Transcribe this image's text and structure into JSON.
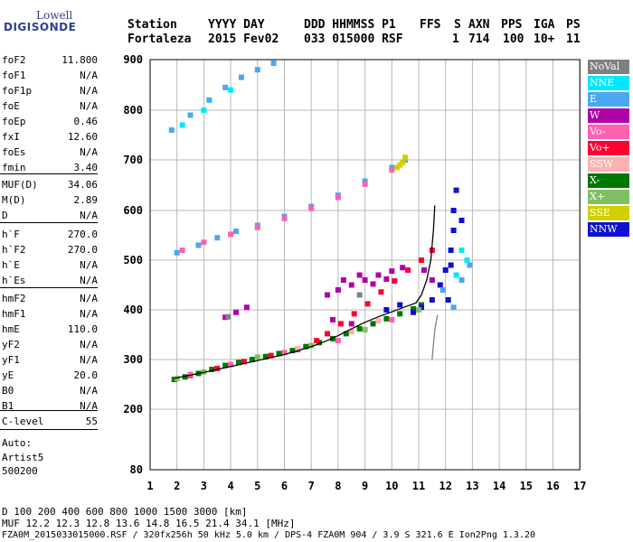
{
  "logo": {
    "line1": "Lowell",
    "line2": "DIGISONDE"
  },
  "header": {
    "labels": [
      "Station",
      "YYYY DAY",
      "DDD HHMMSS P1",
      "FFS",
      "S",
      "AXN",
      "PPS",
      "IGA",
      "PS"
    ],
    "values": [
      "Fortaleza",
      "2015 Fev02",
      "033 015000 RSF",
      "1",
      "714",
      "100",
      "10+",
      "11"
    ]
  },
  "params_group1": [
    {
      "name": "foF2",
      "value": "11.800"
    },
    {
      "name": "foF1",
      "value": "N/A"
    },
    {
      "name": "foF1p",
      "value": "N/A"
    },
    {
      "name": "foE",
      "value": "N/A"
    },
    {
      "name": "foEp",
      "value": "0.46"
    },
    {
      "name": "fxI",
      "value": "12.60"
    },
    {
      "name": "foEs",
      "value": "N/A"
    },
    {
      "name": "fmin",
      "value": "3.40"
    }
  ],
  "params_group2": [
    {
      "name": "MUF(D)",
      "value": "34.06"
    },
    {
      "name": "M(D)",
      "value": "2.89"
    },
    {
      "name": "D",
      "value": "N/A"
    }
  ],
  "params_group3": [
    {
      "name": "h`F",
      "value": "270.0"
    },
    {
      "name": "h`F2",
      "value": "270.0"
    },
    {
      "name": "h`E",
      "value": "N/A"
    },
    {
      "name": "h`Es",
      "value": "N/A"
    }
  ],
  "params_group4": [
    {
      "name": "hmF2",
      "value": "N/A"
    },
    {
      "name": "hmF1",
      "value": "N/A"
    },
    {
      "name": "hmE",
      "value": "110.0"
    },
    {
      "name": "yF2",
      "value": "N/A"
    },
    {
      "name": "yF1",
      "value": "N/A"
    },
    {
      "name": "yE",
      "value": "20.0"
    },
    {
      "name": "B0",
      "value": "N/A"
    },
    {
      "name": "B1",
      "value": "N/A"
    }
  ],
  "params_group5": [
    {
      "name": "C-level",
      "value": "55"
    }
  ],
  "auto": {
    "label": "Auto:",
    "name": "Artist5",
    "code": "500200"
  },
  "legend": [
    {
      "label": "NoVal",
      "color": "#808080"
    },
    {
      "label": "NNE",
      "color": "#00e8ff"
    },
    {
      "label": "E",
      "color": "#4aa8f0"
    },
    {
      "label": "W",
      "color": "#b000a8"
    },
    {
      "label": "Vo-",
      "color": "#ff60b0"
    },
    {
      "label": "Vo+",
      "color": "#ff0030"
    },
    {
      "label": "SSW",
      "color": "#ffb0b0"
    },
    {
      "label": "X-",
      "color": "#007800"
    },
    {
      "label": "X+",
      "color": "#80c060"
    },
    {
      "label": "SSE",
      "color": "#d0d000"
    },
    {
      "label": "NNW",
      "color": "#1010d0"
    }
  ],
  "footer": {
    "line1": "D     100  200  400  600  800 1000 1500 3000 [km]",
    "line2": "MUF  12.2 12.3 12.8 13.6 14.8 16.5 21.4 34.1 [MHz]",
    "line3": "FZA0M_2015033015000.RSF / 320fx256h 50 kHz 5.0 km / DPS-4 FZA0M 904 / 3.9 S 321.6 E   Ion2Png 1.3.20"
  },
  "chart_data": {
    "type": "scatter",
    "title": "",
    "xlabel": "",
    "ylabel": "",
    "xlim": [
      1,
      17
    ],
    "ylim": [
      80,
      900
    ],
    "xticks": [
      "1",
      "2",
      "3",
      "4",
      "5",
      "6",
      "7",
      "8",
      "9",
      "10",
      "11",
      "12",
      "13",
      "14",
      "15",
      "16",
      "17"
    ],
    "yticks": [
      "80",
      "200",
      "300",
      "400",
      "500",
      "600",
      "700",
      "800",
      "900"
    ],
    "grid": true,
    "series": [
      {
        "name": "X-",
        "color": "#007800",
        "points": [
          [
            1.9,
            260
          ],
          [
            2.3,
            265
          ],
          [
            2.8,
            272
          ],
          [
            3.3,
            280
          ],
          [
            3.8,
            288
          ],
          [
            4.3,
            294
          ],
          [
            4.8,
            300
          ],
          [
            5.3,
            306
          ],
          [
            5.8,
            312
          ],
          [
            6.3,
            318
          ],
          [
            6.8,
            326
          ],
          [
            7.3,
            334
          ],
          [
            7.8,
            342
          ],
          [
            8.3,
            352
          ],
          [
            8.8,
            362
          ],
          [
            9.3,
            372
          ],
          [
            9.8,
            382
          ],
          [
            10.3,
            392
          ],
          [
            10.8,
            402
          ],
          [
            11.1,
            410
          ]
        ]
      },
      {
        "name": "Vo+",
        "color": "#ff0030",
        "points": [
          [
            2.5,
            268
          ],
          [
            3.5,
            282
          ],
          [
            4.5,
            296
          ],
          [
            5.5,
            308
          ],
          [
            6.5,
            320
          ],
          [
            7.2,
            338
          ],
          [
            7.6,
            352
          ],
          [
            8.1,
            372
          ],
          [
            8.6,
            392
          ],
          [
            9.1,
            412
          ],
          [
            9.6,
            436
          ],
          [
            10.1,
            458
          ],
          [
            10.6,
            480
          ],
          [
            11.1,
            500
          ],
          [
            11.5,
            520
          ]
        ]
      },
      {
        "name": "W",
        "color": "#b000a8",
        "points": [
          [
            7.6,
            430
          ],
          [
            8.0,
            440
          ],
          [
            8.5,
            450
          ],
          [
            9.0,
            460
          ],
          [
            9.5,
            470
          ],
          [
            10.0,
            478
          ],
          [
            10.4,
            485
          ],
          [
            8.2,
            460
          ],
          [
            8.8,
            470
          ],
          [
            9.3,
            452
          ],
          [
            9.8,
            462
          ],
          [
            7.8,
            380
          ],
          [
            8.5,
            372
          ],
          [
            4.2,
            395
          ],
          [
            4.6,
            405
          ],
          [
            3.8,
            385
          ],
          [
            11.2,
            480
          ],
          [
            11.5,
            460
          ]
        ]
      },
      {
        "name": "NNW",
        "color": "#1010d0",
        "points": [
          [
            10.8,
            395
          ],
          [
            11.1,
            405
          ],
          [
            11.5,
            420
          ],
          [
            11.8,
            450
          ],
          [
            12.0,
            480
          ],
          [
            12.2,
            520
          ],
          [
            12.3,
            560
          ],
          [
            12.3,
            600
          ],
          [
            12.4,
            640
          ],
          [
            12.1,
            420
          ],
          [
            12.6,
            580
          ],
          [
            12.2,
            490
          ],
          [
            9.8,
            400
          ],
          [
            10.3,
            410
          ]
        ]
      },
      {
        "name": "E",
        "color": "#4aa8f0",
        "points": [
          [
            1.8,
            760
          ],
          [
            2.5,
            790
          ],
          [
            3.2,
            820
          ],
          [
            3.8,
            845
          ],
          [
            4.4,
            865
          ],
          [
            5.0,
            880
          ],
          [
            5.6,
            893
          ],
          [
            2.0,
            515
          ],
          [
            2.8,
            530
          ],
          [
            3.5,
            545
          ],
          [
            4.2,
            558
          ],
          [
            5.0,
            570
          ],
          [
            6.0,
            588
          ],
          [
            7.0,
            608
          ],
          [
            8.0,
            630
          ],
          [
            9.0,
            658
          ],
          [
            10.0,
            685
          ],
          [
            10.5,
            700
          ],
          [
            12.6,
            460
          ],
          [
            12.9,
            490
          ],
          [
            11.9,
            440
          ],
          [
            12.3,
            405
          ]
        ]
      },
      {
        "name": "Vo-",
        "color": "#ff60b0",
        "points": [
          [
            2.2,
            520
          ],
          [
            3.0,
            536
          ],
          [
            4.0,
            552
          ],
          [
            5.0,
            566
          ],
          [
            6.0,
            584
          ],
          [
            7.0,
            604
          ],
          [
            8.0,
            626
          ],
          [
            9.0,
            652
          ],
          [
            10.0,
            680
          ],
          [
            2.5,
            270
          ],
          [
            4.0,
            290
          ],
          [
            6.0,
            314
          ],
          [
            8.0,
            338
          ],
          [
            10.0,
            380
          ]
        ]
      },
      {
        "name": "NNE",
        "color": "#00e8ff",
        "points": [
          [
            2.2,
            770
          ],
          [
            3.0,
            800
          ],
          [
            4.0,
            840
          ],
          [
            12.4,
            470
          ],
          [
            12.8,
            500
          ],
          [
            12.6,
            520
          ]
        ]
      },
      {
        "name": "X+",
        "color": "#80c060",
        "points": [
          [
            2.0,
            262
          ],
          [
            3.0,
            275
          ],
          [
            5.0,
            305
          ],
          [
            7.0,
            328
          ],
          [
            9.0,
            360
          ],
          [
            11.0,
            400
          ]
        ]
      },
      {
        "name": "SSE",
        "color": "#d0d000",
        "points": [
          [
            10.2,
            685
          ],
          [
            10.4,
            695
          ],
          [
            10.5,
            705
          ],
          [
            10.3,
            690
          ]
        ]
      },
      {
        "name": "SSW",
        "color": "#ffb0b0",
        "points": [
          [
            6.5,
            322
          ],
          [
            8.5,
            356
          ],
          [
            9.5,
            378
          ]
        ]
      },
      {
        "name": "NoVal",
        "color": "#808080",
        "points": [
          [
            3.9,
            386
          ],
          [
            8.8,
            430
          ]
        ]
      }
    ],
    "trace": {
      "color": "#000000",
      "points": [
        [
          1.9,
          262
        ],
        [
          3.0,
          274
        ],
        [
          4.0,
          286
        ],
        [
          5.0,
          298
        ],
        [
          6.0,
          310
        ],
        [
          7.0,
          326
        ],
        [
          7.5,
          336
        ],
        [
          8.0,
          348
        ],
        [
          8.5,
          362
        ],
        [
          9.0,
          375
        ],
        [
          9.5,
          386
        ],
        [
          10.0,
          396
        ],
        [
          10.5,
          406
        ],
        [
          10.9,
          414
        ],
        [
          11.1,
          430
        ],
        [
          11.3,
          460
        ],
        [
          11.45,
          500
        ],
        [
          11.55,
          560
        ],
        [
          11.6,
          610
        ]
      ]
    },
    "profile": {
      "color": "#808080",
      "points": [
        [
          11.5,
          300
        ],
        [
          11.55,
          330
        ],
        [
          11.6,
          360
        ],
        [
          11.7,
          390
        ]
      ]
    }
  }
}
